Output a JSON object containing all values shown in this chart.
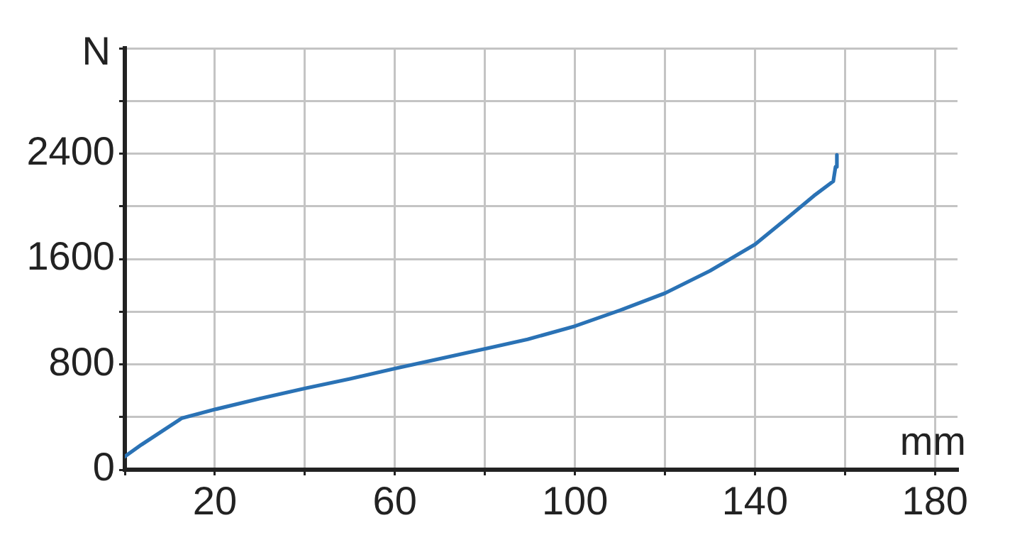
{
  "chart_data": {
    "type": "line",
    "xlabel": "mm",
    "ylabel": "N",
    "xlim": [
      0,
      185
    ],
    "ylim": [
      0,
      3200
    ],
    "xticks": [
      {
        "value": 0,
        "label": null
      },
      20,
      {
        "value": 40,
        "label": null
      },
      60,
      {
        "value": 80,
        "label": null
      },
      100,
      {
        "value": 120,
        "label": null
      },
      140,
      {
        "value": 160,
        "label": null
      },
      180
    ],
    "yticks": [
      0,
      {
        "value": 400,
        "label": null
      },
      800,
      {
        "value": 1200,
        "label": null
      },
      1600,
      {
        "value": 2000,
        "label": null
      },
      2400,
      {
        "value": 2800,
        "label": null
      },
      {
        "value": 3200,
        "label": null
      }
    ],
    "grid": true,
    "legend": false,
    "marker": "none",
    "line_style": "solid",
    "series": [
      {
        "color": "#2a72b5",
        "x": [
          0,
          3.7,
          12.6,
          20.3,
          30,
          40.3,
          50,
          60.3,
          80.3,
          89.5,
          100,
          110,
          120,
          130,
          140,
          146.8,
          153.1,
          157.4,
          157.9,
          158.2
        ],
        "values": [
          100,
          190,
          390,
          460,
          540,
          620,
          690,
          770,
          920,
          990,
          1090,
          1210,
          1340,
          1510,
          1710,
          1900,
          2080,
          2190,
          2300,
          2390
        ]
      }
    ]
  }
}
